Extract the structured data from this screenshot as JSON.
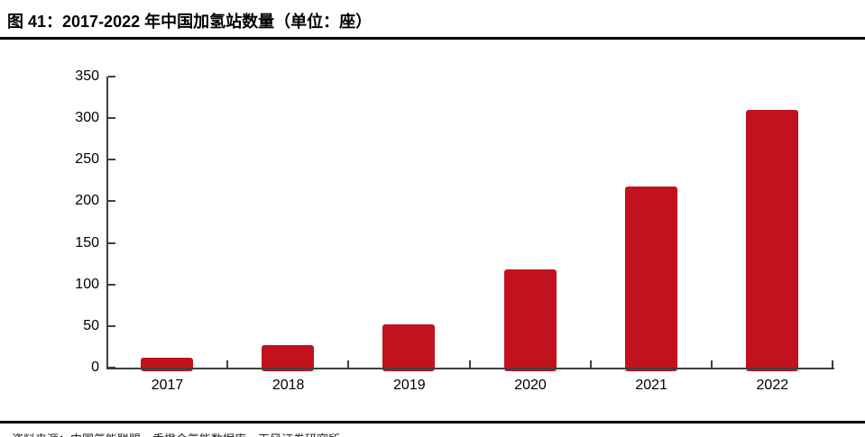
{
  "figure": {
    "title": "图 41：2017-2022 年中国加氢站数量（单位：座）",
    "source_note": "资料来源：中国氢能联盟，香橙会氢能数据库，天风证券研究所"
  },
  "chart_data": {
    "type": "bar",
    "title": "2017-2022 年中国加氢站数量（单位：座）",
    "categories": [
      "2017",
      "2018",
      "2019",
      "2020",
      "2021",
      "2022"
    ],
    "values": [
      12,
      27,
      52,
      118,
      218,
      310
    ],
    "xlabel": "",
    "ylabel": "",
    "ylim": [
      0,
      350
    ],
    "yticks": [
      0,
      50,
      100,
      150,
      200,
      250,
      300,
      350
    ],
    "grid": false,
    "legend": "none",
    "bar_color": "#c2121d",
    "axis_color": "#3f3f3f"
  },
  "colors": {
    "bar": "#c2121d",
    "axis": "#3f3f3f",
    "rule": "#000000",
    "title_text": "#000000"
  }
}
